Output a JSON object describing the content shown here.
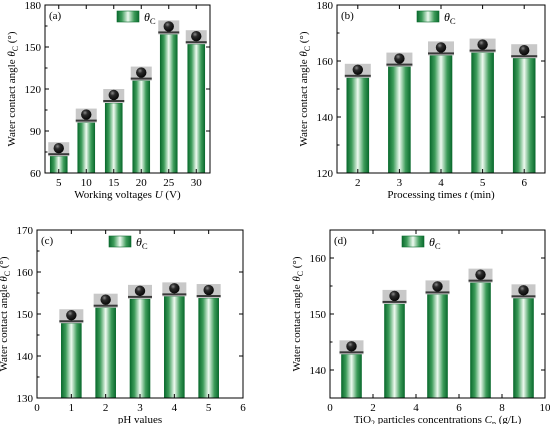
{
  "figure": {
    "colors": {
      "bar_dark": "#0b6b2e",
      "bar_light": "#e9f7ec",
      "droplet": "#111111",
      "inset_bg": "#c8c8c8",
      "axis": "#000000"
    }
  },
  "chart_data": [
    {
      "type": "bar",
      "panel": "(a)",
      "legend": "θC",
      "legend_placement": "top-left",
      "xlabel": "Working voltages U (V)",
      "ylabel": "Water contact angle θC (°)",
      "x": [
        5,
        10,
        15,
        20,
        25,
        30
      ],
      "x_ticks": [
        "5",
        "10",
        "15",
        "20",
        "25",
        "30"
      ],
      "values": [
        72,
        96,
        110,
        126,
        159,
        152
      ],
      "ylim": [
        60,
        180
      ],
      "y_ticks": [
        60,
        90,
        120,
        150,
        180
      ],
      "grid": false,
      "droplet_images": true
    },
    {
      "type": "bar",
      "panel": "(b)",
      "legend": "θC",
      "legend_placement": "top-center",
      "xlabel": "Processing times t (min)",
      "ylabel": "Water contact angle θC (°)",
      "x": [
        2,
        3,
        4,
        5,
        6
      ],
      "x_ticks": [
        "2",
        "3",
        "4",
        "5",
        "6"
      ],
      "values": [
        154,
        158,
        162,
        163,
        161
      ],
      "ylim": [
        120,
        180
      ],
      "y_ticks": [
        120,
        140,
        160,
        180
      ],
      "grid": false,
      "droplet_images": true
    },
    {
      "type": "bar",
      "panel": "(c)",
      "legend": "θC",
      "legend_placement": "top-left",
      "xlabel": "pH values",
      "ylabel": "Water contact angle θC (°)",
      "x": [
        1,
        2,
        3,
        4,
        5
      ],
      "x_ticks": [
        "0",
        "1",
        "2",
        "3",
        "4",
        "5",
        "6"
      ],
      "x_tick_values": [
        0,
        1,
        2,
        3,
        4,
        5,
        6
      ],
      "xlim": [
        0,
        6
      ],
      "values": [
        147.8,
        151.5,
        153.6,
        154.2,
        153.8
      ],
      "ylim": [
        130,
        170
      ],
      "y_ticks": [
        130,
        140,
        150,
        160,
        170
      ],
      "grid": false,
      "droplet_images": true
    },
    {
      "type": "bar",
      "panel": "(d)",
      "legend": "θC",
      "legend_placement": "top-left",
      "xlabel": "TiO2 particles concentrations Cp (g/L)",
      "ylabel": "Water contact angle θC (°)",
      "x": [
        1,
        3,
        5,
        7,
        9
      ],
      "x_ticks": [
        "0",
        "2",
        "4",
        "6",
        "8",
        "10"
      ],
      "x_tick_values": [
        0,
        2,
        4,
        6,
        8,
        10
      ],
      "xlim": [
        0,
        10
      ],
      "values": [
        142.8,
        151.8,
        153.5,
        155.6,
        152.8
      ],
      "ylim": [
        135,
        165
      ],
      "y_ticks": [
        140,
        150,
        160
      ],
      "grid": false,
      "droplet_images": true
    }
  ]
}
